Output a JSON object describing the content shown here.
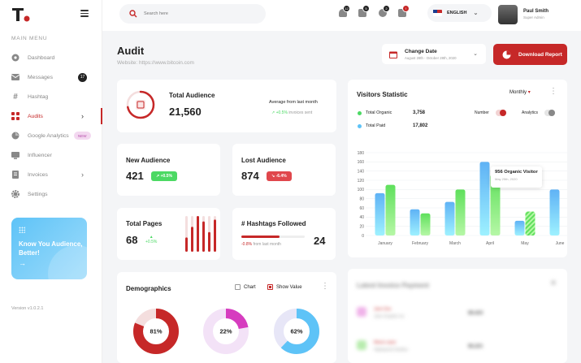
{
  "sidebar": {
    "menu_title": "MAIN MENU",
    "items": [
      {
        "label": "Dashboard"
      },
      {
        "label": "Messages",
        "badge": "17"
      },
      {
        "label": "Hashtag"
      },
      {
        "label": "Audits"
      },
      {
        "label": "Google Analytics",
        "badge": "NEW"
      },
      {
        "label": "Influencer"
      },
      {
        "label": "Invoices"
      },
      {
        "label": "Settings"
      }
    ],
    "promo_text": "Know You Audience, Better!",
    "promo_arrow": "→",
    "version": "Version v1.0.2.1"
  },
  "topbar": {
    "search_placeholder": "Search here",
    "notifications": [
      "12",
      "5",
      "2",
      "!"
    ],
    "language": "ENGLISH",
    "user_name": "Paul Smith",
    "user_role": "Super Admin"
  },
  "header": {
    "title": "Audit",
    "subtitle": "Website: https://www.bitcoin.com",
    "date_label": "Change Date",
    "date_range": "August 28th - October 28th, 2020",
    "download_label": "Download Report"
  },
  "total_audience": {
    "title": "Total Audience",
    "value": "21,560",
    "avg_label": "Average from last month",
    "change": "+0.5%",
    "change_suffix": "invoices sent",
    "progress": 0.72
  },
  "new_audience": {
    "title": "New Audience",
    "value": "421",
    "change": "+0.5%"
  },
  "lost_audience": {
    "title": "Lost Audience",
    "value": "874",
    "change": "-6.4%"
  },
  "total_pages": {
    "title": "Total Pages",
    "value": "68",
    "change": "+0.5%",
    "bars": [
      0.4,
      0.7,
      1.0,
      0.85,
      0.55,
      0.9
    ]
  },
  "hashtags": {
    "title": "# Hashtags Followed",
    "value": "24",
    "change": "-0.8%",
    "change_suffix": "from last month",
    "progress": 0.6
  },
  "demographics": {
    "title": "Demographics",
    "chart_label": "Chart",
    "show_value_label": "Show Value",
    "donuts": [
      {
        "value": "81%",
        "fraction": 0.81,
        "color": "#c62828",
        "track": "#f4dede"
      },
      {
        "value": "22%",
        "fraction": 0.22,
        "color": "#d63cbf",
        "track": "#f3e2f7"
      },
      {
        "value": "62%",
        "fraction": 0.62,
        "color": "#5ec3f7",
        "track": "#e7e6f7"
      }
    ]
  },
  "visitors": {
    "title": "Visitors Statistic",
    "period": "Monthly",
    "legend": [
      {
        "label": "Total Organic",
        "value": "3,758",
        "color": "#4cd964"
      },
      {
        "label": "Total Paid",
        "value": "17,802",
        "color": "#5ec3f7"
      }
    ],
    "number_label": "Number",
    "analytics_label": "Analytics",
    "tooltip_value": "956 Organic Visitor",
    "tooltip_date": "May 25th, 2020"
  },
  "invoices_blur": {
    "title": "Latest Invoice Payment",
    "rows": [
      {
        "name": "Jane Doe",
        "company": "Jane Graphic Inc",
        "amount": "$9,423"
      },
      {
        "name": "Maria Lopez",
        "company": "Highspeed Studios",
        "amount": "$5,221"
      }
    ]
  },
  "chart_data": {
    "type": "bar",
    "categories": [
      "January",
      "February",
      "March",
      "April",
      "May",
      "June"
    ],
    "series": [
      {
        "name": "Total Paid",
        "values": [
          92,
          57,
          73,
          160,
          32,
          100
        ]
      },
      {
        "name": "Total Organic",
        "values": [
          110,
          48,
          100,
          132,
          52,
          0
        ]
      }
    ],
    "ylim": [
      0,
      180
    ],
    "yticks": [
      0,
      20,
      40,
      60,
      80,
      100,
      120,
      140,
      160,
      180
    ],
    "colors": {
      "Total Paid": "#5ec3f7",
      "Total Organic": "#4cd964"
    }
  }
}
